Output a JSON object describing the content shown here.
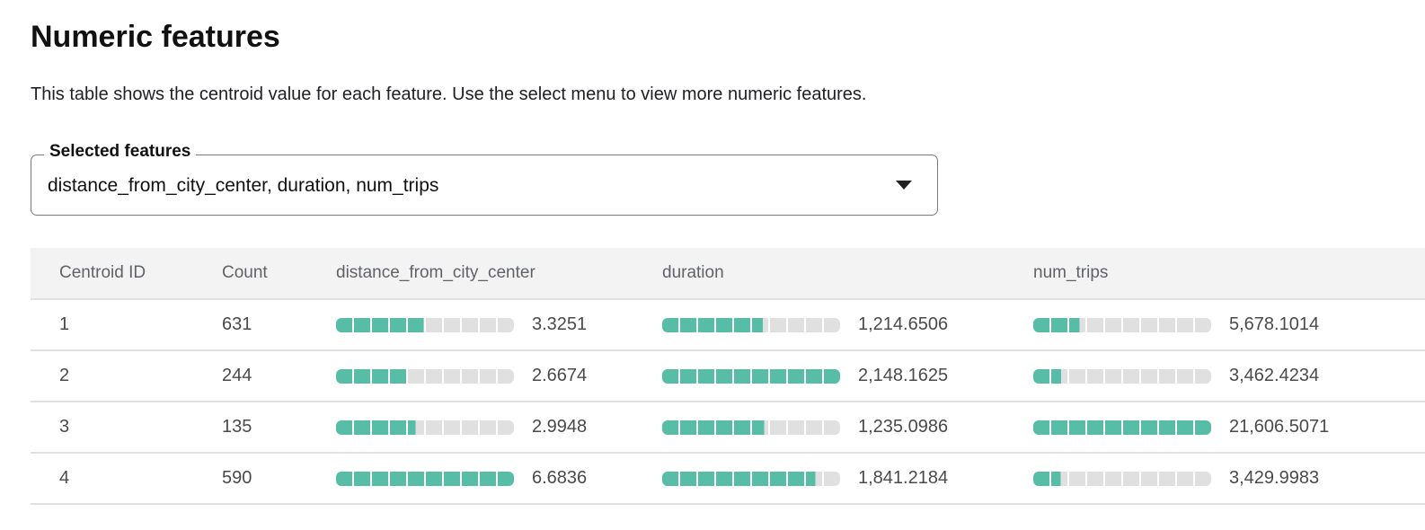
{
  "title": "Numeric features",
  "description": "This table shows the centroid value for each feature. Use the select menu to view more numeric features.",
  "select": {
    "label": "Selected features",
    "value": "distance_from_city_center, duration, num_trips"
  },
  "colors": {
    "bar_fill": "#57bda6",
    "bar_empty": "#e0e0e0"
  },
  "table": {
    "headers": [
      "Centroid ID",
      "Count",
      "distance_from_city_center",
      "duration",
      "num_trips"
    ],
    "rows": [
      {
        "id": "1",
        "count": "631",
        "distance_from_city_center": "3.3251",
        "duration": "1,214.6506",
        "num_trips": "5,678.1014"
      },
      {
        "id": "2",
        "count": "244",
        "distance_from_city_center": "2.6674",
        "duration": "2,148.1625",
        "num_trips": "3,462.4234"
      },
      {
        "id": "3",
        "count": "135",
        "distance_from_city_center": "2.9948",
        "duration": "1,235.0986",
        "num_trips": "21,606.5071"
      },
      {
        "id": "4",
        "count": "590",
        "distance_from_city_center": "6.6836",
        "duration": "1,841.2184",
        "num_trips": "3,429.9983"
      }
    ]
  }
}
